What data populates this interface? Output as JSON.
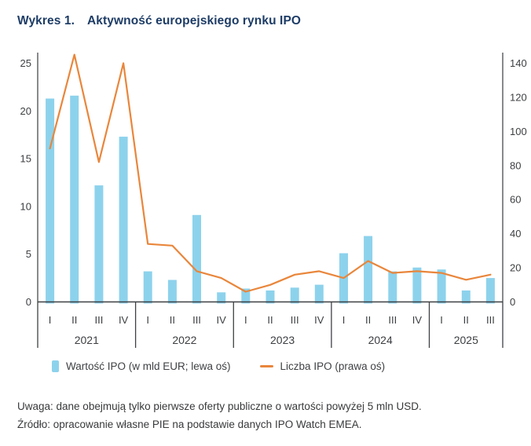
{
  "title": {
    "number": "Wykres 1.",
    "text": "Aktywność europejskiego rynku IPO"
  },
  "legend": [
    {
      "label": "Wartość IPO (w mld EUR; lewa oś)",
      "marker": "bar-swatch",
      "color": "#8dd2ec"
    },
    {
      "label": "Liczba IPO (prawa oś)",
      "marker": "line-swatch",
      "color": "#e9863b"
    }
  ],
  "notes": [
    "Uwaga: dane obejmują tylko pierwsze oferty publiczne o wartości powyżej 5 mln USD.",
    "Źródło: opracowanie własne PIE na podstawie danych IPO Watch EMEA."
  ],
  "colors": {
    "bar": "#8dd2ec",
    "line": "#e9863b",
    "title": "#1d3c66",
    "axis_line": "#55575a",
    "baseline": "#3e4043",
    "tick_text": "#3c3e41"
  },
  "chart_data": {
    "type": "bar+line combo, dual axis",
    "title": "Aktywność europejskiego rynku IPO",
    "years": [
      {
        "label": "2021",
        "quarters": [
          "I",
          "II",
          "III",
          "IV"
        ]
      },
      {
        "label": "2022",
        "quarters": [
          "I",
          "II",
          "III",
          "IV"
        ]
      },
      {
        "label": "2023",
        "quarters": [
          "I",
          "II",
          "III",
          "IV"
        ]
      },
      {
        "label": "2024",
        "quarters": [
          "I",
          "II",
          "III",
          "IV"
        ]
      },
      {
        "label": "2025",
        "quarters": [
          "I",
          "II",
          "III"
        ]
      }
    ],
    "categories": [
      "2021 I",
      "2021 II",
      "2021 III",
      "2021 IV",
      "2022 I",
      "2022 II",
      "2022 III",
      "2022 IV",
      "2023 I",
      "2023 II",
      "2023 III",
      "2023 IV",
      "2024 I",
      "2024 II",
      "2024 III",
      "2024 IV",
      "2025 I",
      "2025 II",
      "2025 III"
    ],
    "series": [
      {
        "name": "Wartość IPO (w mld EUR; lewa oś)",
        "type": "bar",
        "axis": "left",
        "color": "#8dd2ec",
        "values": [
          21.3,
          21.6,
          12.2,
          17.3,
          3.2,
          2.3,
          9.1,
          1.0,
          1.4,
          1.2,
          1.5,
          1.8,
          5.1,
          6.9,
          3.2,
          3.6,
          3.4,
          1.2,
          2.5
        ]
      },
      {
        "name": "Liczba IPO (prawa oś)",
        "type": "line",
        "axis": "right",
        "color": "#e9863b",
        "values": [
          90,
          145,
          82,
          140,
          34,
          33,
          18,
          14,
          6,
          10,
          16,
          18,
          14,
          24,
          17,
          18,
          17,
          13,
          16
        ]
      }
    ],
    "left_axis": {
      "ticks": [
        0,
        5,
        10,
        15,
        20,
        25
      ],
      "range": [
        0,
        25
      ]
    },
    "right_axis": {
      "ticks": [
        0,
        20,
        40,
        60,
        80,
        100,
        120,
        140
      ],
      "range": [
        0,
        140
      ]
    },
    "grid": false,
    "legend_position": "bottom"
  }
}
